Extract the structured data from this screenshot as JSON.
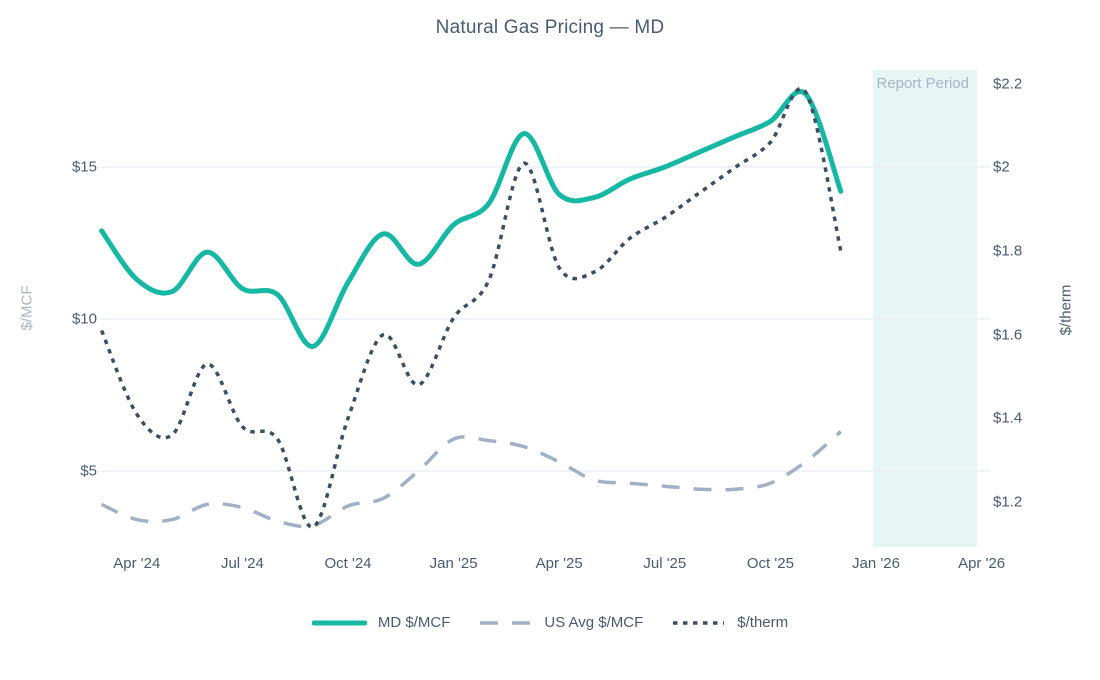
{
  "title": "Natural Gas Pricing — MD",
  "colors": {
    "md_mcf": "#17b8a3",
    "us_avg_mcf": "#a2b0c6",
    "usd_therm": "#3d4e63",
    "grid": "#e8edf3",
    "band_fill": "#e7f5f4",
    "tick_text": "#4a5b70",
    "muted_text": "#a9b4c4"
  },
  "left_axis": {
    "title": "$/MCF",
    "tick_labels": [
      "$15",
      "$10",
      "$5"
    ],
    "tick_values": [
      15,
      10,
      5
    ]
  },
  "right_axis": {
    "title": "$/therm",
    "tick_labels": [
      "$2.2",
      "$2",
      "$1.8",
      "$1.6",
      "$1.4",
      "$1.2"
    ],
    "tick_values": [
      2.2,
      2.0,
      1.8,
      1.6,
      1.4,
      1.2
    ]
  },
  "x_axis": {
    "tick_labels": [
      "Apr '24",
      "Jul '24",
      "Oct '24",
      "Jan '25",
      "Apr '25",
      "Jul '25",
      "Oct '25",
      "Jan '26",
      "Apr '26"
    ],
    "tick_month_index": [
      1,
      4,
      7,
      10,
      13,
      16,
      19,
      22,
      25
    ]
  },
  "band": {
    "label": "Report Period"
  },
  "legend": [
    {
      "label": "MD $/MCF",
      "series": "md_mcf",
      "style": "solid"
    },
    {
      "label": "US Avg $/MCF",
      "series": "us_avg_mcf",
      "style": "long-dash"
    },
    {
      "label": "$/therm",
      "series": "usd_therm",
      "style": "dotted"
    }
  ],
  "chart_data": {
    "type": "line",
    "title": "Natural Gas Pricing — MD",
    "x": [
      "Mar '24",
      "Apr '24",
      "May '24",
      "Jun '24",
      "Jul '24",
      "Aug '24",
      "Sep '24",
      "Oct '24",
      "Nov '24",
      "Dec '24",
      "Jan '25",
      "Feb '25",
      "Mar '25",
      "Apr '25",
      "May '25",
      "Jun '25",
      "Jul '25",
      "Aug '25",
      "Sep '25",
      "Oct '25",
      "Nov '25",
      "Dec '25"
    ],
    "series": [
      {
        "name": "MD $/MCF",
        "axis": "left",
        "style": "solid",
        "color": "#17b8a3",
        "values": [
          12.9,
          11.3,
          10.9,
          12.2,
          11.0,
          10.8,
          9.1,
          11.2,
          12.8,
          11.8,
          13.1,
          13.8,
          16.1,
          14.1,
          14.0,
          14.6,
          15.0,
          15.5,
          16.0,
          16.5,
          17.4,
          14.2
        ]
      },
      {
        "name": "US Avg $/MCF",
        "axis": "left",
        "style": "long-dash",
        "color": "#a2b0c6",
        "values": [
          3.9,
          3.4,
          3.4,
          3.9,
          3.8,
          3.35,
          3.2,
          3.85,
          4.1,
          5.0,
          6.05,
          6.0,
          5.8,
          5.3,
          4.7,
          4.6,
          4.5,
          4.4,
          4.4,
          4.6,
          5.3,
          6.3
        ]
      },
      {
        "name": "$/therm",
        "axis": "right",
        "style": "dotted",
        "color": "#3d4e63",
        "values": [
          1.61,
          1.41,
          1.36,
          1.53,
          1.38,
          1.35,
          1.14,
          1.4,
          1.6,
          1.48,
          1.64,
          1.73,
          2.01,
          1.76,
          1.75,
          1.83,
          1.88,
          1.94,
          2.0,
          2.06,
          2.18,
          1.8
        ]
      }
    ],
    "left_ylabel": "$/MCF",
    "right_ylabel": "$/therm",
    "left_axis_ticks": [
      5,
      10,
      15
    ],
    "right_axis_ticks": [
      1.2,
      1.4,
      1.6,
      1.8,
      2.0,
      2.2
    ],
    "left_ylim": [
      2.5,
      18.2
    ],
    "right_ylim": [
      1.09,
      2.23
    ],
    "grid": "horizontal, left-axis ticks only",
    "legend_position": "bottom-center",
    "report_period_band": {
      "label": "Report Period",
      "approx_range": [
        "Jan '26",
        "Apr '26"
      ]
    }
  }
}
